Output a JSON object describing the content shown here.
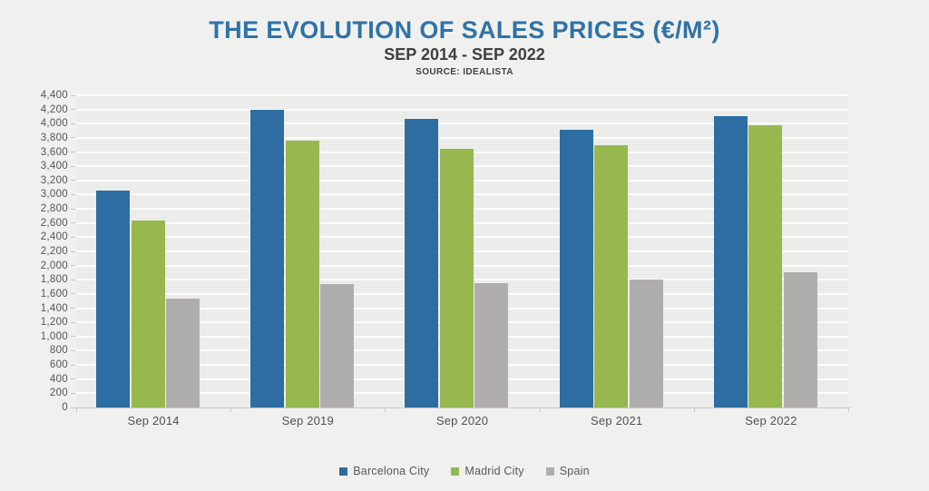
{
  "header": {
    "title": "THE EVOLUTION OF SALES PRICES (€/M²)",
    "subtitle": "SEP 2014 - SEP 2022",
    "source": "SOURCE: IDEALISTA"
  },
  "colors": {
    "title_blue": "#2f72a8",
    "page_background": "#f0f1ef",
    "plot_background": "#ecedeb",
    "gridline": "#f9faf9",
    "axis_line": "#c6cac9",
    "tick_text": "#50555a"
  },
  "chart_data": {
    "type": "bar",
    "title": "THE EVOLUTION OF SALES PRICES (€/M²)",
    "subtitle": "SEP 2014 - SEP 2022",
    "source": "SOURCE: IDEALISTA",
    "categories": [
      "Sep 2014",
      "Sep 2019",
      "Sep 2020",
      "Sep 2021",
      "Sep 2022"
    ],
    "series": [
      {
        "name": "Barcelona City",
        "color": "#2d6da1",
        "values": [
          3060,
          4200,
          4070,
          3920,
          4110
        ]
      },
      {
        "name": "Madrid City",
        "color": "#96b84f",
        "values": [
          2640,
          3760,
          3650,
          3700,
          3980
        ]
      },
      {
        "name": "Spain",
        "color": "#b0aeac",
        "values": [
          1540,
          1740,
          1750,
          1810,
          1900
        ]
      }
    ],
    "xlabel": "",
    "ylabel": "",
    "ylim": [
      0,
      4400
    ],
    "ytick_step": 200,
    "grid": true,
    "legend_position": "bottom"
  }
}
